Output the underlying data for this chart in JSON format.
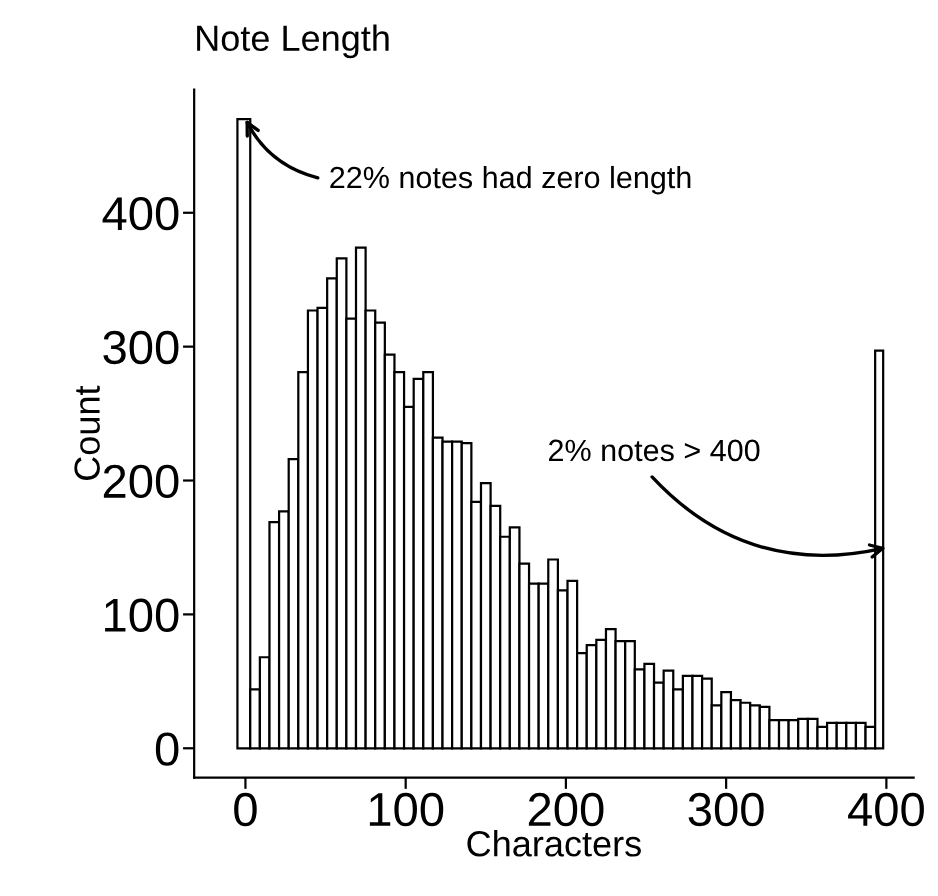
{
  "chart_data": {
    "type": "histogram",
    "title": "Note Length",
    "xlabel": "Characters",
    "ylabel": "Count",
    "color": "#ffffff",
    "bins": [
      -5,
      3,
      9,
      15,
      21,
      27,
      33,
      39,
      45,
      51,
      57,
      63,
      69,
      75,
      81,
      87,
      93,
      99,
      105,
      111,
      117,
      123,
      129,
      135,
      141,
      147,
      153,
      159,
      165,
      171,
      177,
      183,
      189,
      195,
      201,
      207,
      213,
      219,
      225,
      231,
      237,
      243,
      249,
      255,
      261,
      267,
      273,
      279,
      285,
      291,
      297,
      303,
      309,
      315,
      321,
      327,
      333,
      339,
      345,
      351,
      357,
      363,
      369,
      375,
      381,
      387,
      393,
      398
    ],
    "values": [
      470,
      44,
      68,
      169,
      177,
      216,
      281,
      327,
      329,
      351,
      366,
      321,
      374,
      327,
      318,
      294,
      281,
      255,
      276,
      281,
      232,
      229,
      229,
      228,
      184,
      198,
      181,
      158,
      165,
      138,
      123,
      123,
      141,
      118,
      125,
      71,
      77,
      81,
      89,
      80,
      80,
      59,
      63,
      49,
      58,
      44,
      54,
      54,
      52,
      32,
      42,
      36,
      34,
      32,
      31,
      21,
      21,
      21,
      22,
      22,
      16,
      19,
      19,
      19,
      19,
      16,
      297
    ],
    "xlim": [
      -32,
      417
    ],
    "ylim": [
      -22,
      492
    ],
    "xticks": [
      0,
      100,
      200,
      300,
      400
    ],
    "yticks": [
      0,
      100,
      200,
      300,
      400
    ],
    "grid": false,
    "annotations": [
      {
        "text": "22% notes had zero length",
        "x": 0,
        "y": 470
      },
      {
        "text": "2% notes > 400",
        "x": 400,
        "y": 150
      }
    ]
  }
}
